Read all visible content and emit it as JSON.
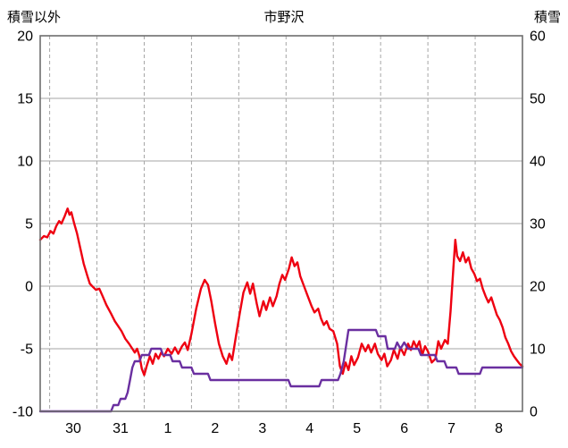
{
  "header": {
    "left_axis_title": "積雪以外",
    "title": "市野沢",
    "right_axis_title": "積雪"
  },
  "colors": {
    "temperature_line": "#ee0011",
    "snow_line": "#6a2fa0",
    "frame": "#6e6e6e",
    "grid": "#a6a6a6",
    "text": "#000000",
    "background": "#ffffff"
  },
  "chart_data": {
    "type": "line",
    "title": "市野沢",
    "left_axis": {
      "label": "積雪以外",
      "min": -10,
      "max": 20,
      "ticks": [
        20,
        15,
        10,
        5,
        0,
        -5,
        -10
      ]
    },
    "right_axis": {
      "label": "積雪",
      "min": 0,
      "max": 60,
      "ticks": [
        60,
        50,
        40,
        30,
        20,
        10,
        0
      ]
    },
    "x_axis": {
      "tick_labels": [
        "30",
        "31",
        "1",
        "2",
        "3",
        "4",
        "5",
        "6",
        "7",
        "8"
      ],
      "t_min": 0,
      "t_max": 10.2,
      "first_day_boundary": 0.2,
      "day_count": 10
    },
    "grid": {
      "vertical_dashed": true,
      "horizontal_solid": true
    },
    "legend": "none",
    "series": [
      {
        "name": "積雪以外",
        "axis": "left",
        "color": "#ee0011",
        "points": [
          [
            0.0,
            3.7
          ],
          [
            0.08,
            4.0
          ],
          [
            0.15,
            3.9
          ],
          [
            0.22,
            4.4
          ],
          [
            0.28,
            4.2
          ],
          [
            0.34,
            4.8
          ],
          [
            0.4,
            5.2
          ],
          [
            0.45,
            5.0
          ],
          [
            0.52,
            5.6
          ],
          [
            0.58,
            6.2
          ],
          [
            0.62,
            5.7
          ],
          [
            0.66,
            5.9
          ],
          [
            0.72,
            5.0
          ],
          [
            0.78,
            4.2
          ],
          [
            0.85,
            3.0
          ],
          [
            0.92,
            1.8
          ],
          [
            1.0,
            0.8
          ],
          [
            1.05,
            0.2
          ],
          [
            1.1,
            0.0
          ],
          [
            1.18,
            -0.3
          ],
          [
            1.25,
            -0.2
          ],
          [
            1.32,
            -0.8
          ],
          [
            1.4,
            -1.5
          ],
          [
            1.5,
            -2.2
          ],
          [
            1.58,
            -2.8
          ],
          [
            1.65,
            -3.2
          ],
          [
            1.72,
            -3.6
          ],
          [
            1.8,
            -4.2
          ],
          [
            1.88,
            -4.6
          ],
          [
            1.95,
            -5.0
          ],
          [
            2.0,
            -5.3
          ],
          [
            2.05,
            -5.0
          ],
          [
            2.1,
            -5.6
          ],
          [
            2.15,
            -6.6
          ],
          [
            2.2,
            -7.1
          ],
          [
            2.26,
            -6.3
          ],
          [
            2.32,
            -5.6
          ],
          [
            2.38,
            -6.2
          ],
          [
            2.44,
            -5.4
          ],
          [
            2.5,
            -5.8
          ],
          [
            2.56,
            -5.3
          ],
          [
            2.62,
            -5.6
          ],
          [
            2.7,
            -5.0
          ],
          [
            2.78,
            -5.4
          ],
          [
            2.85,
            -4.9
          ],
          [
            2.92,
            -5.4
          ],
          [
            3.0,
            -4.8
          ],
          [
            3.06,
            -4.5
          ],
          [
            3.12,
            -5.1
          ],
          [
            3.2,
            -3.8
          ],
          [
            3.3,
            -1.8
          ],
          [
            3.4,
            -0.2
          ],
          [
            3.48,
            0.5
          ],
          [
            3.55,
            0.1
          ],
          [
            3.62,
            -1.2
          ],
          [
            3.7,
            -3.0
          ],
          [
            3.78,
            -4.6
          ],
          [
            3.86,
            -5.6
          ],
          [
            3.94,
            -6.2
          ],
          [
            4.0,
            -5.4
          ],
          [
            4.06,
            -5.9
          ],
          [
            4.14,
            -4.0
          ],
          [
            4.22,
            -2.2
          ],
          [
            4.3,
            -0.5
          ],
          [
            4.38,
            0.3
          ],
          [
            4.44,
            -0.6
          ],
          [
            4.5,
            0.2
          ],
          [
            4.58,
            -1.4
          ],
          [
            4.64,
            -2.4
          ],
          [
            4.72,
            -1.2
          ],
          [
            4.78,
            -1.9
          ],
          [
            4.86,
            -0.9
          ],
          [
            4.92,
            -1.6
          ],
          [
            5.0,
            -0.8
          ],
          [
            5.06,
            0.2
          ],
          [
            5.12,
            0.9
          ],
          [
            5.18,
            0.5
          ],
          [
            5.26,
            1.4
          ],
          [
            5.32,
            2.3
          ],
          [
            5.38,
            1.6
          ],
          [
            5.44,
            1.9
          ],
          [
            5.5,
            0.8
          ],
          [
            5.58,
            0.0
          ],
          [
            5.66,
            -0.8
          ],
          [
            5.74,
            -1.6
          ],
          [
            5.8,
            -2.1
          ],
          [
            5.88,
            -1.8
          ],
          [
            5.94,
            -2.6
          ],
          [
            6.0,
            -3.1
          ],
          [
            6.06,
            -2.8
          ],
          [
            6.12,
            -3.4
          ],
          [
            6.2,
            -3.6
          ],
          [
            6.28,
            -4.6
          ],
          [
            6.34,
            -6.4
          ],
          [
            6.4,
            -7.0
          ],
          [
            6.46,
            -6.1
          ],
          [
            6.52,
            -6.7
          ],
          [
            6.58,
            -5.6
          ],
          [
            6.64,
            -6.3
          ],
          [
            6.72,
            -5.7
          ],
          [
            6.8,
            -4.6
          ],
          [
            6.88,
            -5.2
          ],
          [
            6.94,
            -4.7
          ],
          [
            7.0,
            -5.3
          ],
          [
            7.08,
            -4.6
          ],
          [
            7.14,
            -5.4
          ],
          [
            7.22,
            -5.9
          ],
          [
            7.28,
            -5.4
          ],
          [
            7.34,
            -6.4
          ],
          [
            7.42,
            -5.9
          ],
          [
            7.48,
            -5.1
          ],
          [
            7.56,
            -5.8
          ],
          [
            7.62,
            -4.9
          ],
          [
            7.7,
            -5.5
          ],
          [
            7.78,
            -4.6
          ],
          [
            7.84,
            -5.1
          ],
          [
            7.9,
            -4.4
          ],
          [
            7.96,
            -4.9
          ],
          [
            8.02,
            -4.4
          ],
          [
            8.08,
            -5.5
          ],
          [
            8.14,
            -4.8
          ],
          [
            8.2,
            -5.2
          ],
          [
            8.28,
            -6.1
          ],
          [
            8.36,
            -5.8
          ],
          [
            8.42,
            -4.4
          ],
          [
            8.48,
            -5.0
          ],
          [
            8.56,
            -4.3
          ],
          [
            8.62,
            -4.6
          ],
          [
            8.68,
            -2.0
          ],
          [
            8.74,
            1.5
          ],
          [
            8.78,
            3.7
          ],
          [
            8.82,
            2.4
          ],
          [
            8.88,
            2.0
          ],
          [
            8.94,
            2.7
          ],
          [
            9.0,
            1.9
          ],
          [
            9.06,
            2.3
          ],
          [
            9.12,
            1.4
          ],
          [
            9.18,
            1.0
          ],
          [
            9.24,
            0.4
          ],
          [
            9.3,
            0.6
          ],
          [
            9.36,
            -0.2
          ],
          [
            9.42,
            -0.8
          ],
          [
            9.48,
            -1.3
          ],
          [
            9.54,
            -0.9
          ],
          [
            9.6,
            -1.6
          ],
          [
            9.66,
            -2.3
          ],
          [
            9.72,
            -2.7
          ],
          [
            9.78,
            -3.3
          ],
          [
            9.84,
            -4.1
          ],
          [
            9.9,
            -4.6
          ],
          [
            9.96,
            -5.2
          ],
          [
            10.02,
            -5.6
          ],
          [
            10.08,
            -5.9
          ],
          [
            10.14,
            -6.2
          ],
          [
            10.2,
            -6.4
          ]
        ]
      },
      {
        "name": "積雪",
        "axis": "right",
        "color": "#6a2fa0",
        "points": [
          [
            0.0,
            0
          ],
          [
            1.5,
            0
          ],
          [
            1.55,
            1
          ],
          [
            1.65,
            1
          ],
          [
            1.7,
            2
          ],
          [
            1.8,
            2
          ],
          [
            1.85,
            3
          ],
          [
            1.9,
            5
          ],
          [
            1.95,
            7
          ],
          [
            2.0,
            8
          ],
          [
            2.1,
            8
          ],
          [
            2.15,
            9
          ],
          [
            2.3,
            9
          ],
          [
            2.35,
            10
          ],
          [
            2.55,
            10
          ],
          [
            2.6,
            9
          ],
          [
            2.75,
            9
          ],
          [
            2.8,
            8
          ],
          [
            2.95,
            8
          ],
          [
            3.0,
            7
          ],
          [
            3.2,
            7
          ],
          [
            3.25,
            6
          ],
          [
            3.55,
            6
          ],
          [
            3.6,
            5
          ],
          [
            5.25,
            5
          ],
          [
            5.3,
            4
          ],
          [
            5.9,
            4
          ],
          [
            5.95,
            5
          ],
          [
            6.3,
            5
          ],
          [
            6.35,
            6
          ],
          [
            6.42,
            8
          ],
          [
            6.48,
            11
          ],
          [
            6.52,
            13
          ],
          [
            7.1,
            13
          ],
          [
            7.15,
            12
          ],
          [
            7.3,
            12
          ],
          [
            7.35,
            10
          ],
          [
            7.5,
            10
          ],
          [
            7.55,
            11
          ],
          [
            7.62,
            10
          ],
          [
            7.7,
            11
          ],
          [
            7.78,
            10
          ],
          [
            8.0,
            10
          ],
          [
            8.05,
            9
          ],
          [
            8.35,
            9
          ],
          [
            8.4,
            8
          ],
          [
            8.55,
            8
          ],
          [
            8.6,
            7
          ],
          [
            8.8,
            7
          ],
          [
            8.85,
            6
          ],
          [
            9.3,
            6
          ],
          [
            9.35,
            7
          ],
          [
            10.2,
            7
          ]
        ]
      }
    ]
  }
}
